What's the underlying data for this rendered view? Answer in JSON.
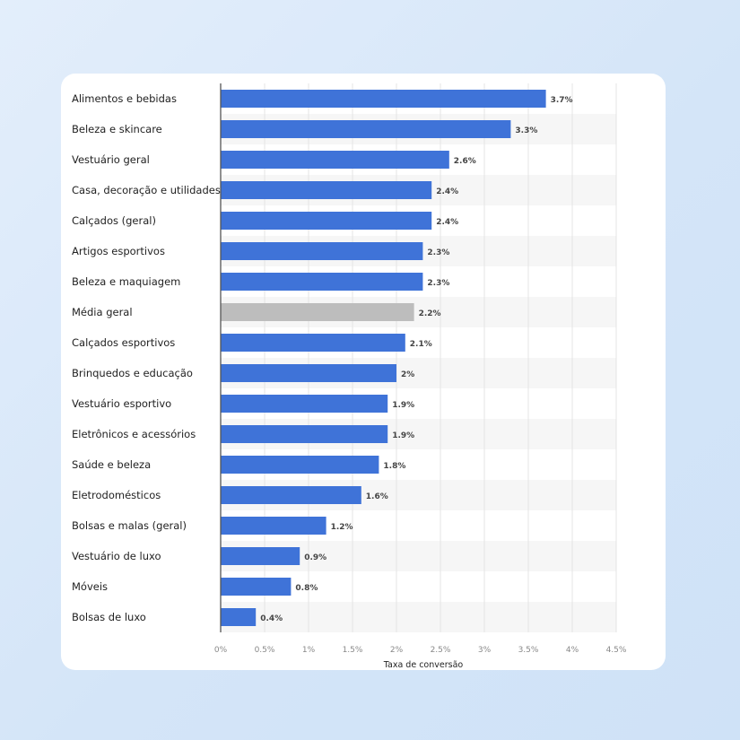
{
  "chart_data": {
    "type": "bar",
    "orientation": "horizontal",
    "categories": [
      "Alimentos e bebidas",
      "Beleza e skincare",
      "Vestuário geral",
      "Casa, decoração e utilidades",
      "Calçados (geral)",
      "Artigos esportivos",
      "Beleza e maquiagem",
      "Média geral",
      "Calçados esportivos",
      "Brinquedos e educação",
      "Vestuário esportivo",
      "Eletrônicos e acessórios",
      "Saúde e beleza",
      "Eletrodomésticos",
      "Bolsas e malas (geral)",
      "Vestuário de luxo",
      "Móveis",
      "Bolsas de luxo"
    ],
    "values": [
      3.7,
      3.3,
      2.6,
      2.4,
      2.4,
      2.3,
      2.3,
      2.2,
      2.1,
      2.0,
      1.9,
      1.9,
      1.8,
      1.6,
      1.2,
      0.9,
      0.8,
      0.4
    ],
    "value_labels": [
      "3.7%",
      "3.3%",
      "2.6%",
      "2.4%",
      "2.4%",
      "2.3%",
      "2.3%",
      "2.2%",
      "2.1%",
      "2%",
      "1.9%",
      "1.9%",
      "1.8%",
      "1.6%",
      "1.2%",
      "0.9%",
      "0.8%",
      "0.4%"
    ],
    "xlabel": "Taxa de conversão",
    "ylabel": "",
    "xlim": [
      0,
      4.5
    ],
    "xticks": [
      0,
      0.5,
      1,
      1.5,
      2,
      2.5,
      3,
      3.5,
      4,
      4.5
    ],
    "xtick_labels": [
      "0%",
      "0.5%",
      "1%",
      "1.5%",
      "2%",
      "2.5%",
      "3%",
      "3.5%",
      "4%",
      "4.5%"
    ],
    "grid": "vertical",
    "highlight_category": "Média geral",
    "colors": {
      "bar": "#3f73d8",
      "highlight_bar": "#bdbdbd",
      "stripe": "#f6f6f6",
      "grid": "#e4e4e4",
      "axis": "#555555"
    }
  }
}
